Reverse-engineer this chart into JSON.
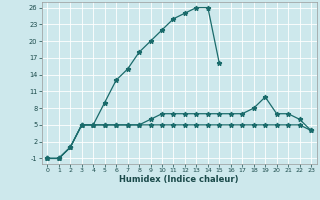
{
  "xlabel": "Humidex (Indice chaleur)",
  "background_color": "#cde8ec",
  "grid_color": "#ffffff",
  "line_color": "#1a6b6b",
  "xlim": [
    -0.5,
    23.5
  ],
  "ylim": [
    -2,
    27
  ],
  "xticks": [
    0,
    1,
    2,
    3,
    4,
    5,
    6,
    7,
    8,
    9,
    10,
    11,
    12,
    13,
    14,
    15,
    16,
    17,
    18,
    19,
    20,
    21,
    22,
    23
  ],
  "yticks": [
    -1,
    2,
    5,
    8,
    11,
    14,
    17,
    20,
    23,
    26
  ],
  "curve1_x": [
    0,
    1,
    2,
    3,
    4,
    5,
    6,
    7,
    8,
    9,
    10,
    11,
    12,
    13,
    14,
    15
  ],
  "curve1_y": [
    -1,
    -1,
    1,
    5,
    5,
    9,
    13,
    15,
    18,
    20,
    22,
    24,
    25,
    26,
    26,
    16
  ],
  "curve2_x": [
    0,
    1,
    2,
    3,
    4,
    5,
    6,
    7,
    8,
    9,
    10,
    11,
    12,
    13,
    14,
    15,
    16,
    17,
    18,
    19,
    20,
    21,
    22,
    23
  ],
  "curve2_y": [
    -1,
    -1,
    1,
    5,
    5,
    5,
    5,
    5,
    5,
    5,
    5,
    5,
    5,
    5,
    5,
    5,
    5,
    5,
    5,
    5,
    5,
    5,
    5,
    4
  ],
  "curve3_x": [
    0,
    1,
    2,
    3,
    4,
    5,
    6,
    7,
    8,
    9,
    10,
    11,
    12,
    13,
    14,
    15,
    16,
    17,
    18,
    19,
    20,
    21,
    22,
    23
  ],
  "curve3_y": [
    -1,
    -1,
    1,
    5,
    5,
    5,
    5,
    5,
    5,
    6,
    7,
    7,
    7,
    7,
    7,
    7,
    7,
    7,
    8,
    10,
    7,
    7,
    6,
    4
  ]
}
